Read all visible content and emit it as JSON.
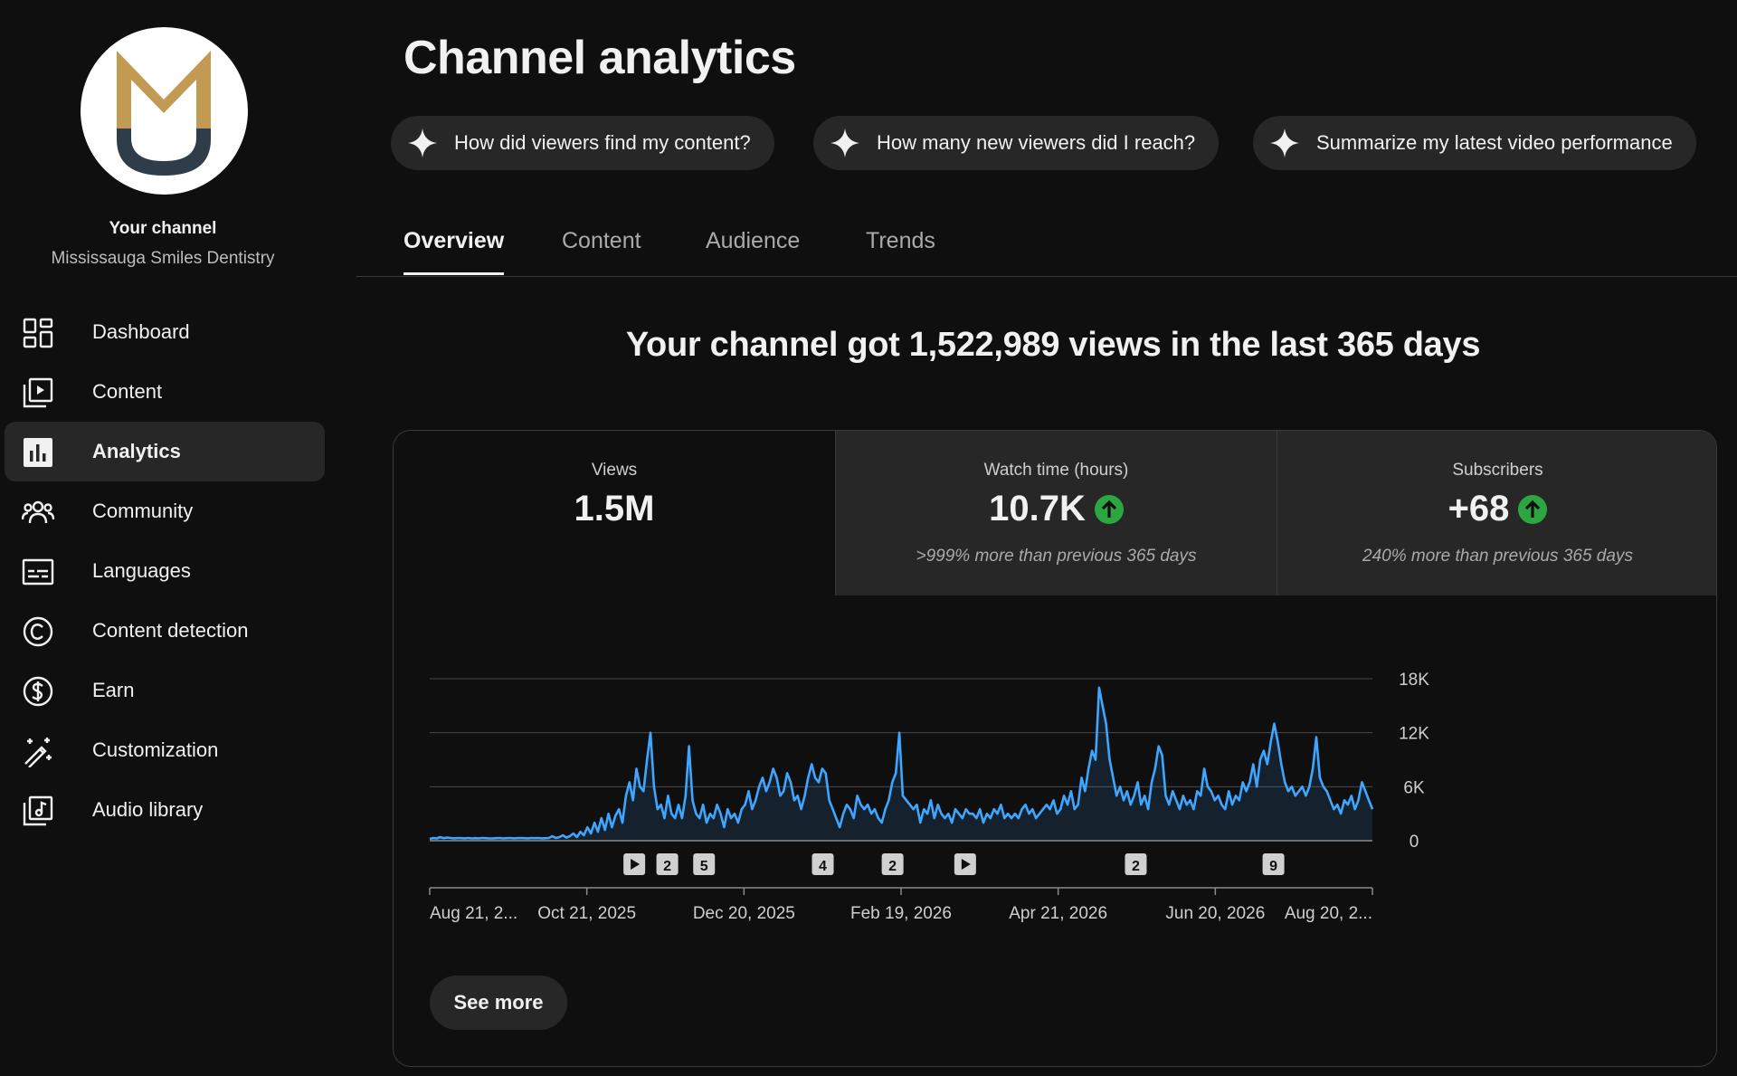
{
  "sidebar": {
    "channel_title": "Your channel",
    "channel_name": "Mississauga Smiles Dentistry",
    "items": [
      {
        "label": "Dashboard",
        "icon": "dashboard-icon"
      },
      {
        "label": "Content",
        "icon": "content-icon"
      },
      {
        "label": "Analytics",
        "icon": "analytics-icon",
        "active": true
      },
      {
        "label": "Community",
        "icon": "community-icon"
      },
      {
        "label": "Languages",
        "icon": "languages-icon"
      },
      {
        "label": "Content detection",
        "icon": "copyright-icon"
      },
      {
        "label": "Earn",
        "icon": "dollar-icon"
      },
      {
        "label": "Customization",
        "icon": "magic-wand-icon"
      },
      {
        "label": "Audio library",
        "icon": "audio-library-icon"
      }
    ]
  },
  "header": {
    "title": "Channel analytics"
  },
  "suggestions": [
    "How did viewers find my content?",
    "How many new viewers did I reach?",
    "Summarize my latest video performance"
  ],
  "tabs": [
    "Overview",
    "Content",
    "Audience",
    "Trends"
  ],
  "headline": "Your channel got 1,522,989 views in the last 365 days",
  "metrics": [
    {
      "label": "Views",
      "value": "1.5M",
      "note": ""
    },
    {
      "label": "Watch time (hours)",
      "value": "10.7K",
      "note": ">999% more than previous 365 days",
      "trend": "up"
    },
    {
      "label": "Subscribers",
      "value": "+68",
      "note": "240% more than previous 365 days",
      "trend": "up"
    }
  ],
  "see_more": "See more",
  "colors": {
    "line": "#3ea6ff",
    "trend_up": "#2ba640",
    "background": "#0f0f0f",
    "surface": "#272727"
  },
  "chart_data": {
    "type": "line",
    "series": [
      {
        "values": [
          200,
          300,
          250,
          400,
          280,
          350,
          300,
          250,
          300,
          280,
          260,
          300,
          250,
          280,
          260,
          300,
          280,
          250,
          260,
          280,
          300,
          250,
          280,
          300,
          260,
          280,
          300,
          280,
          260,
          300,
          280,
          300,
          260,
          280,
          300,
          500,
          300,
          400,
          600,
          350,
          500,
          800,
          400,
          1000,
          600,
          1500,
          800,
          2000,
          1000,
          2500,
          1200,
          3000,
          1500,
          2800,
          3500,
          2000,
          5000,
          6500,
          4500,
          8000,
          6000,
          5500,
          9000,
          12000,
          6000,
          3500,
          4000,
          2500,
          5000,
          3000,
          2500,
          4000,
          2500,
          5000,
          10500,
          4500,
          3000,
          2500,
          4000,
          2000,
          3000,
          2500,
          4000,
          3000,
          1500,
          3500,
          2500,
          3000,
          2000,
          3500,
          4000,
          5500,
          3500,
          4500,
          6000,
          7000,
          5500,
          6500,
          8000,
          7000,
          5000,
          5500,
          7500,
          6500,
          4500,
          5000,
          3500,
          5000,
          7000,
          8500,
          7000,
          6500,
          8000,
          7500,
          4500,
          3500,
          2500,
          1500,
          3000,
          4000,
          3500,
          2500,
          5000,
          4000,
          3500,
          4000,
          3000,
          3500,
          2500,
          2000,
          3500,
          4500,
          6500,
          7500,
          12000,
          5000,
          4500,
          4000,
          3500,
          4000,
          2000,
          3500,
          3000,
          4500,
          2500,
          4000,
          3000,
          2500,
          3000,
          2000,
          3500,
          3000,
          2500,
          3500,
          3000,
          3000,
          2500,
          3500,
          2000,
          3000,
          2500,
          3500,
          3000,
          4000,
          2500,
          3000,
          2500,
          3000,
          2500,
          3500,
          4000,
          3000,
          3500,
          2500,
          3000,
          3500,
          4000,
          3500,
          4500,
          3000,
          3500,
          5000,
          4000,
          5500,
          3500,
          4000,
          7000,
          5500,
          8000,
          10000,
          9000,
          17000,
          15000,
          13000,
          9000,
          7000,
          5000,
          6000,
          4500,
          5500,
          4000,
          5000,
          6500,
          4000,
          5000,
          3500,
          6500,
          8000,
          10500,
          9500,
          5000,
          4000,
          5500,
          4500,
          3500,
          5000,
          4000,
          4500,
          3500,
          5500,
          5000,
          8000,
          6000,
          5500,
          4500,
          5000,
          4000,
          3500,
          5500,
          4000,
          5000,
          4500,
          6500,
          5500,
          6500,
          8500,
          6000,
          9000,
          10000,
          8500,
          11000,
          13000,
          11000,
          8500,
          6500,
          5500,
          6000,
          5000,
          5500,
          6000,
          5000,
          6000,
          8000,
          11500,
          7000,
          6000,
          5500,
          4500,
          3500,
          4000,
          3000,
          4500,
          4000,
          5000,
          3500,
          4500,
          6500,
          5500,
          4500,
          3500
        ]
      }
    ],
    "x_ticks": [
      "Aug 21, 2...",
      "Oct 21, 2025",
      "Dec 20, 2025",
      "Feb 19, 2026",
      "Apr 21, 2026",
      "Jun 20, 2026",
      "Aug 20, 2..."
    ],
    "y_ticks": [
      "0",
      "6K",
      "12K",
      "18K"
    ],
    "ylim": [
      0,
      18000
    ],
    "grid": true,
    "markers": [
      {
        "kind": "play",
        "at": 0.217
      },
      {
        "kind": "count",
        "label": "2",
        "at": 0.252
      },
      {
        "kind": "count",
        "label": "5",
        "at": 0.291
      },
      {
        "kind": "count",
        "label": "4",
        "at": 0.417
      },
      {
        "kind": "count",
        "label": "2",
        "at": 0.491
      },
      {
        "kind": "play",
        "at": 0.568
      },
      {
        "kind": "count",
        "label": "2",
        "at": 0.749
      },
      {
        "kind": "count",
        "label": "9",
        "at": 0.895
      }
    ]
  }
}
